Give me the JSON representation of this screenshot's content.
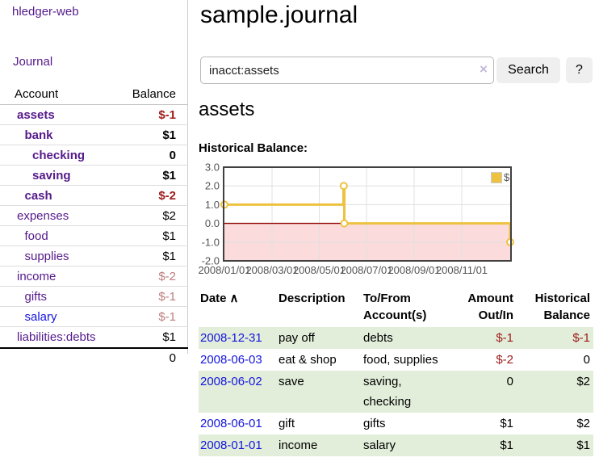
{
  "sidebar": {
    "brand": "hledger-web",
    "nav": [
      {
        "label": "Journal"
      }
    ],
    "accounts_table": {
      "col_account": "Account",
      "col_balance": "Balance",
      "rows": [
        {
          "name": "assets",
          "balance": "$-1",
          "depth": 0,
          "bold": true,
          "amount_style": "neg-strong"
        },
        {
          "name": "bank",
          "balance": "$1",
          "depth": 1,
          "bold": true,
          "amount_style": "pos"
        },
        {
          "name": "checking",
          "balance": "0",
          "depth": 2,
          "bold": true,
          "amount_style": "pos"
        },
        {
          "name": "saving",
          "balance": "$1",
          "depth": 2,
          "bold": true,
          "amount_style": "pos"
        },
        {
          "name": "cash",
          "balance": "$-2",
          "depth": 1,
          "bold": true,
          "amount_style": "neg-strong"
        },
        {
          "name": "expenses",
          "balance": "$2",
          "depth": 0,
          "bold": false,
          "amount_style": "pos"
        },
        {
          "name": "food",
          "balance": "$1",
          "depth": 1,
          "bold": false,
          "amount_style": "pos"
        },
        {
          "name": "supplies",
          "balance": "$1",
          "depth": 1,
          "bold": false,
          "amount_style": "pos"
        },
        {
          "name": "income",
          "balance": "$-2",
          "depth": 0,
          "bold": false,
          "amount_style": "neg-faded"
        },
        {
          "name": "gifts",
          "balance": "$-1",
          "depth": 1,
          "bold": false,
          "amount_style": "neg-faded"
        },
        {
          "name": "salary",
          "balance": "$-1",
          "depth": 1,
          "bold": false,
          "amount_style": "neg-faded",
          "link_color": "blue"
        },
        {
          "name": "liabilities:debts",
          "balance": "$1",
          "depth": 0,
          "bold": false,
          "amount_style": "pos"
        }
      ],
      "total": "0"
    }
  },
  "header": {
    "title": "sample.journal"
  },
  "search": {
    "query": "inacct:assets",
    "clear_icon": "×",
    "button": "Search",
    "help_button": "?"
  },
  "main": {
    "account_heading": "assets",
    "chart_label": "Historical Balance:"
  },
  "chart_data": {
    "type": "line",
    "title": "Historical Balance",
    "step": true,
    "series": [
      {
        "name": "$",
        "color": "#edc240",
        "points": [
          [
            "2008-01-01",
            1
          ],
          [
            "2008-06-01",
            2
          ],
          [
            "2008-06-02",
            2
          ],
          [
            "2008-06-03",
            0
          ],
          [
            "2008-12-31",
            -1
          ]
        ]
      }
    ],
    "ylim": [
      -2.0,
      3.0
    ],
    "ytick_labels": [
      "3.0",
      "2.0",
      "1.0",
      "0.0",
      "-1.0",
      "-2.0"
    ],
    "xtick_labels": [
      "2008/01/01",
      "2008/03/01",
      "2008/05/01",
      "2008/07/01",
      "2008/09/01",
      "2008/11/01"
    ],
    "legend_label": "$",
    "legend_position": "top-right",
    "grid": true,
    "negative_region_color": "#fbdbdb",
    "zero_line_color": "#8b0000"
  },
  "register": {
    "header": {
      "date": "Date",
      "sort_icon": "∧",
      "description": "Description",
      "tofrom": "To/From\nAccount(s)",
      "amount": "Amount\nOut/In",
      "balance": "Historical\nBalance"
    },
    "rows": [
      {
        "date": "2008-12-31",
        "description": "pay off",
        "accounts": "debts",
        "amount": "$-1",
        "amount_neg": true,
        "balance": "$-1",
        "balance_neg": true
      },
      {
        "date": "2008-06-03",
        "description": "eat & shop",
        "accounts": "food, supplies",
        "amount": "$-2",
        "amount_neg": true,
        "balance": "0",
        "balance_neg": false
      },
      {
        "date": "2008-06-02",
        "description": "save",
        "accounts": "saving,\nchecking",
        "amount": "0",
        "amount_neg": false,
        "balance": "$2",
        "balance_neg": false
      },
      {
        "date": "2008-06-01",
        "description": "gift",
        "accounts": "gifts",
        "amount": "$1",
        "amount_neg": false,
        "balance": "$2",
        "balance_neg": false
      },
      {
        "date": "2008-01-01",
        "description": "income",
        "accounts": "salary",
        "amount": "$1",
        "amount_neg": false,
        "balance": "$1",
        "balance_neg": false
      }
    ]
  },
  "colors": {
    "link_purple": "#551a8b",
    "link_blue": "#1515dd",
    "negative_strong": "#9d1a1a",
    "negative_faded": "#bd7d7d",
    "row_green": "#e2eeda",
    "chart_line_gold": "#edc240",
    "chart_negative_pink": "#fbdbdb",
    "chart_zero_line": "#8b0000"
  }
}
